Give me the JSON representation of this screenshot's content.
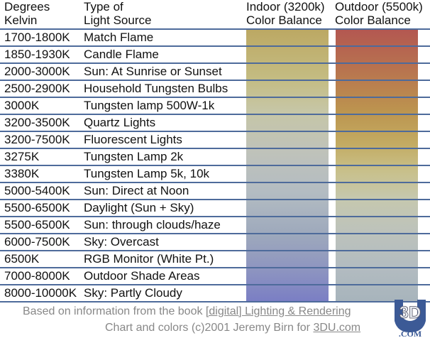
{
  "header": {
    "col1": [
      "Degrees",
      "Kelvin"
    ],
    "col2": [
      "Type of",
      "Light Source"
    ],
    "col3": [
      "Indoor (3200k)",
      "Color Balance"
    ],
    "col4": [
      "Outdoor (5500k)",
      "Color Balance"
    ]
  },
  "chart_data": {
    "type": "table",
    "columns": [
      "Degrees Kelvin",
      "Type of Light Source",
      "Indoor (3200k) Color Balance",
      "Outdoor (5500k) Color Balance"
    ],
    "rows": [
      [
        "1700-1800K",
        "Match Flame"
      ],
      [
        "1850-1930K",
        "Candle Flame"
      ],
      [
        "2000-3000K",
        "Sun: At Sunrise or Sunset"
      ],
      [
        "2500-2900K",
        "Household Tungsten Bulbs"
      ],
      [
        "3000K",
        "Tungsten lamp 500W-1k"
      ],
      [
        "3200-3500K",
        "Quartz Lights"
      ],
      [
        "3200-7500K",
        "Fluorescent Lights"
      ],
      [
        "3275K",
        "Tungsten Lamp 2k"
      ],
      [
        "3380K",
        "Tungsten Lamp 5k, 10k"
      ],
      [
        "5000-5400K",
        "Sun: Direct at Noon"
      ],
      [
        "5500-6500K",
        "Daylight (Sun + Sky)"
      ],
      [
        "5500-6500K",
        "Sun: through clouds/haze"
      ],
      [
        "6000-7500K",
        "Sky: Overcast"
      ],
      [
        "6500K",
        "RGB Monitor (White Pt.)"
      ],
      [
        "7000-8000K",
        "Outdoor Shade Areas"
      ],
      [
        "8000-10000K",
        "Sky: Partly Cloudy"
      ]
    ],
    "indoor_gradient": [
      "#bca863",
      "#c6c6a6",
      "#b3bcc2",
      "#7a7ec4"
    ],
    "outdoor_gradient": [
      "#b35751",
      "#bc944f",
      "#c8c08a",
      "#a7b4bc"
    ]
  },
  "footer": {
    "line1_pre": "Based on information from the book ",
    "line1_link": "[digital] Lighting & Rendering",
    "line2_pre": "Chart and colors (c)2001 Jeremy Birn for ",
    "line2_link": "3DU.com"
  },
  "logo": {
    "text": "3D",
    "sub": ".COM"
  },
  "colors": {
    "rule": "#4e6b9b",
    "footer_text": "#888888"
  }
}
